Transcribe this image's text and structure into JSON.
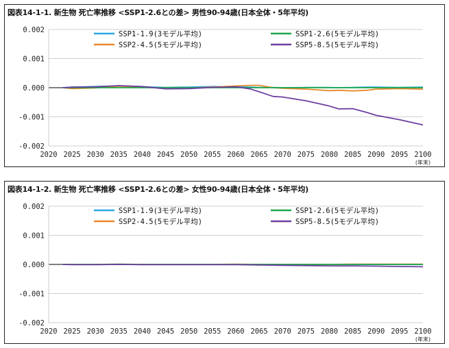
{
  "colors": {
    "SSP1-1.9": "#2aa8e0",
    "SSP1-2.6": "#1aa64a",
    "SSP2-4.5": "#e8882a",
    "SSP5-8.5": "#6b3fa0"
  },
  "chart_data": [
    {
      "type": "line",
      "title": "図表14-1-1. 新生物 死亡率推移 <SSP1-2.6との差> 男性90-94歳(日本全体・5年平均)",
      "x_unit": "(年末)",
      "xlim": [
        2020,
        2100
      ],
      "ylim": [
        -0.002,
        0.002
      ],
      "x_ticks": [
        "2020",
        "2025",
        "2030",
        "2035",
        "2040",
        "2045",
        "2050",
        "2055",
        "2060",
        "2065",
        "2070",
        "2075",
        "2080",
        "2085",
        "2090",
        "2095",
        "2100"
      ],
      "y_ticks": [
        "0.002",
        "0.001",
        "0.000",
        "-0.001",
        "-0.002"
      ],
      "grid": true,
      "legend": "top",
      "x": [
        2023,
        2025,
        2030,
        2035,
        2040,
        2045,
        2050,
        2055,
        2060,
        2063,
        2065,
        2068,
        2070,
        2075,
        2080,
        2082,
        2085,
        2088,
        2090,
        2095,
        2100
      ],
      "series": [
        {
          "name": "SSP1-1.9(3モデル平均)",
          "values": [
            0,
            2e-05,
            4e-05,
            6e-05,
            3e-05,
            1e-05,
            2e-05,
            4e-05,
            3e-05,
            2e-05,
            1e-05,
            1e-05,
            0.0,
            1e-05,
            1e-05,
            0.0,
            1e-05,
            2e-05,
            2e-05,
            1e-05,
            2e-05
          ]
        },
        {
          "name": "SSP1-2.6(5モデル平均)",
          "values": [
            0,
            0,
            0,
            0,
            0,
            0,
            0,
            0,
            0,
            0,
            0,
            0,
            0,
            0,
            0,
            0,
            0,
            0,
            0,
            0,
            0
          ]
        },
        {
          "name": "SSP2-4.5(5モデル平均)",
          "values": [
            0,
            -3e-05,
            -1e-05,
            5e-05,
            2e-05,
            -2e-05,
            -1e-05,
            2e-05,
            6e-05,
            8e-05,
            8e-05,
            0.0,
            -2e-05,
            -5e-05,
            -0.0001,
            -9e-05,
            -0.00011,
            -9e-05,
            -5e-05,
            -3e-05,
            -5e-05
          ]
        },
        {
          "name": "SSP5-8.5(5モデル平均)",
          "values": [
            0,
            2e-05,
            3e-05,
            7e-05,
            4e-05,
            -4e-05,
            -3e-05,
            1e-05,
            3e-05,
            -4e-05,
            -0.00014,
            -0.0003,
            -0.00032,
            -0.00045,
            -0.00063,
            -0.00073,
            -0.00072,
            -0.00085,
            -0.00095,
            -0.0011,
            -0.00128
          ]
        }
      ]
    },
    {
      "type": "line",
      "title": "図表14-1-2. 新生物 死亡率推移 <SSP1-2.6との差> 女性90-94歳(日本全体・5年平均)",
      "x_unit": "(年末)",
      "xlim": [
        2020,
        2100
      ],
      "ylim": [
        -0.002,
        0.002
      ],
      "x_ticks": [
        "2020",
        "2025",
        "2030",
        "2035",
        "2040",
        "2045",
        "2050",
        "2055",
        "2060",
        "2065",
        "2070",
        "2075",
        "2080",
        "2085",
        "2090",
        "2095",
        "2100"
      ],
      "y_ticks": [
        "0.002",
        "0.001",
        "0.000",
        "-0.001",
        "-0.002"
      ],
      "grid": true,
      "legend": "top",
      "x": [
        2023,
        2025,
        2030,
        2035,
        2040,
        2045,
        2050,
        2055,
        2060,
        2065,
        2070,
        2075,
        2080,
        2085,
        2090,
        2095,
        2100
      ],
      "series": [
        {
          "name": "SSP1-1.9(3モデル平均)",
          "values": [
            0,
            0.0,
            0.0,
            1e-05,
            0.0,
            0.0,
            0.0,
            0.0,
            0.0,
            0.0,
            0.0,
            0.0,
            0.0,
            0.0,
            0.0,
            0.0,
            0.0
          ]
        },
        {
          "name": "SSP1-2.6(5モデル平均)",
          "values": [
            0,
            0,
            0,
            0,
            0,
            0,
            0,
            0,
            0,
            0,
            0,
            0,
            0,
            0,
            0,
            0,
            0
          ]
        },
        {
          "name": "SSP2-4.5(5モデル平均)",
          "values": [
            0,
            0.0,
            0.0,
            1e-05,
            0.0,
            0.0,
            0.0,
            0.0,
            1e-05,
            0.0,
            0.0,
            0.0,
            0.0,
            1e-05,
            1e-05,
            1e-05,
            1e-05
          ]
        },
        {
          "name": "SSP5-8.5(5モデル平均)",
          "values": [
            0,
            -1e-05,
            -1e-05,
            0.0,
            -1e-05,
            -1e-05,
            -1e-05,
            -1e-05,
            -1e-05,
            -2e-05,
            -3e-05,
            -4e-05,
            -5e-05,
            -5e-05,
            -6e-05,
            -7e-05,
            -8e-05
          ]
        }
      ]
    }
  ]
}
